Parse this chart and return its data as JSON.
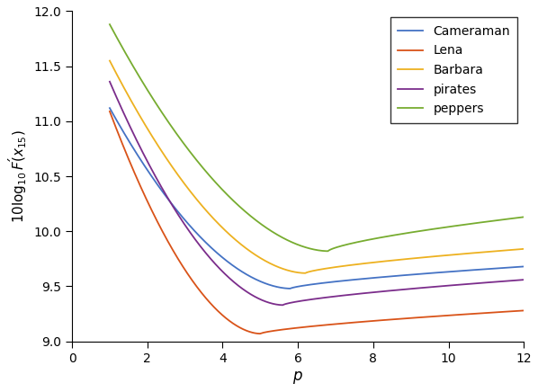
{
  "title": "",
  "xlabel": "p",
  "ylabel": "10\\log_{10} F'(x_{15})",
  "xlim": [
    0,
    12
  ],
  "ylim": [
    9,
    12
  ],
  "yticks": [
    9,
    9.5,
    10,
    10.5,
    11,
    11.5,
    12
  ],
  "xticks": [
    0,
    2,
    4,
    6,
    8,
    10,
    12
  ],
  "series": [
    {
      "label": "Cameraman",
      "color": "#4472C4",
      "y1": 11.12,
      "y_min": 9.48,
      "p_min": 5.8,
      "y12": 9.68
    },
    {
      "label": "Lena",
      "color": "#D95319",
      "y1": 11.09,
      "y_min": 9.07,
      "p_min": 5.0,
      "y12": 9.28
    },
    {
      "label": "Barbara",
      "color": "#EDB120",
      "y1": 11.55,
      "y_min": 9.62,
      "p_min": 6.2,
      "y12": 9.84
    },
    {
      "label": "pirates",
      "color": "#7B2D8B",
      "y1": 11.36,
      "y_min": 9.33,
      "p_min": 5.6,
      "y12": 9.56
    },
    {
      "label": "peppers",
      "color": "#77AC30",
      "y1": 11.88,
      "y_min": 9.82,
      "p_min": 6.8,
      "y12": 10.13
    }
  ],
  "legend_loc": "upper right",
  "background_color": "#ffffff",
  "spine_color": "#000000",
  "tick_fontsize": 10,
  "label_fontsize": 12,
  "linewidth": 1.3
}
